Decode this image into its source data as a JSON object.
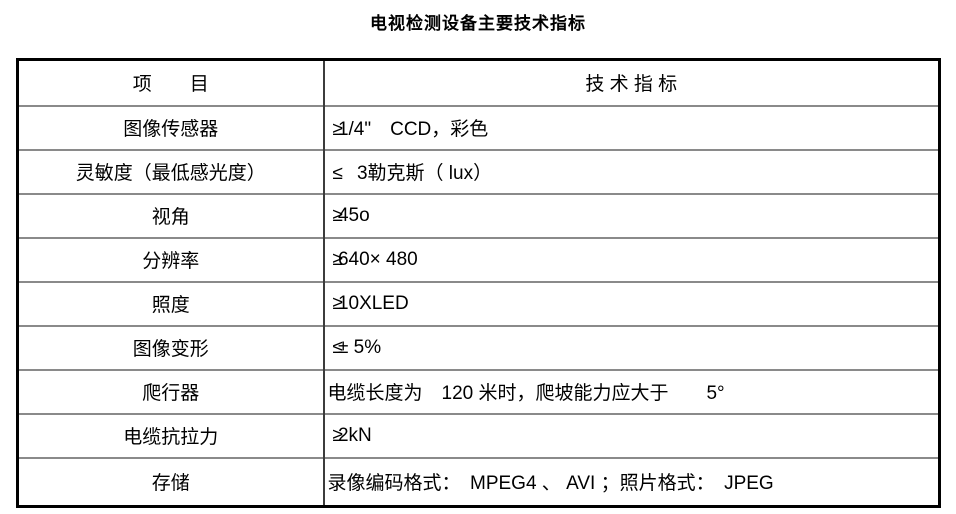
{
  "page": {
    "title": "电视检测设备主要技术指标"
  },
  "table": {
    "header": {
      "item": "项　　目",
      "spec": "技 术 指 标"
    },
    "rows": [
      {
        "item": "图像传感器",
        "prefix": "≥",
        "value": "1/4\"　CCD，彩色"
      },
      {
        "item": "灵敏度（最低感光度）",
        "prefix": "≤",
        "value": "　3勒克斯（ lux）"
      },
      {
        "item": "视角",
        "prefix": "≥",
        "value": "45o"
      },
      {
        "item": "分辨率",
        "prefix": "≥",
        "value": "640× 480"
      },
      {
        "item": "照度",
        "prefix": "≥",
        "value": "10XLED"
      },
      {
        "item": "图像变形",
        "prefix": "≤",
        "value": "± 5%"
      },
      {
        "item": "爬行器",
        "prefix": "",
        "value": "电缆长度为　120 米时，爬坡能力应大于　　5°"
      },
      {
        "item": "电缆抗拉力",
        "prefix": "≥",
        "value": "2kN"
      },
      {
        "item": "存储",
        "prefix": "",
        "value": "录像编码格式：　MPEG4 、 AVI ；照片格式：　JPEG"
      }
    ]
  }
}
